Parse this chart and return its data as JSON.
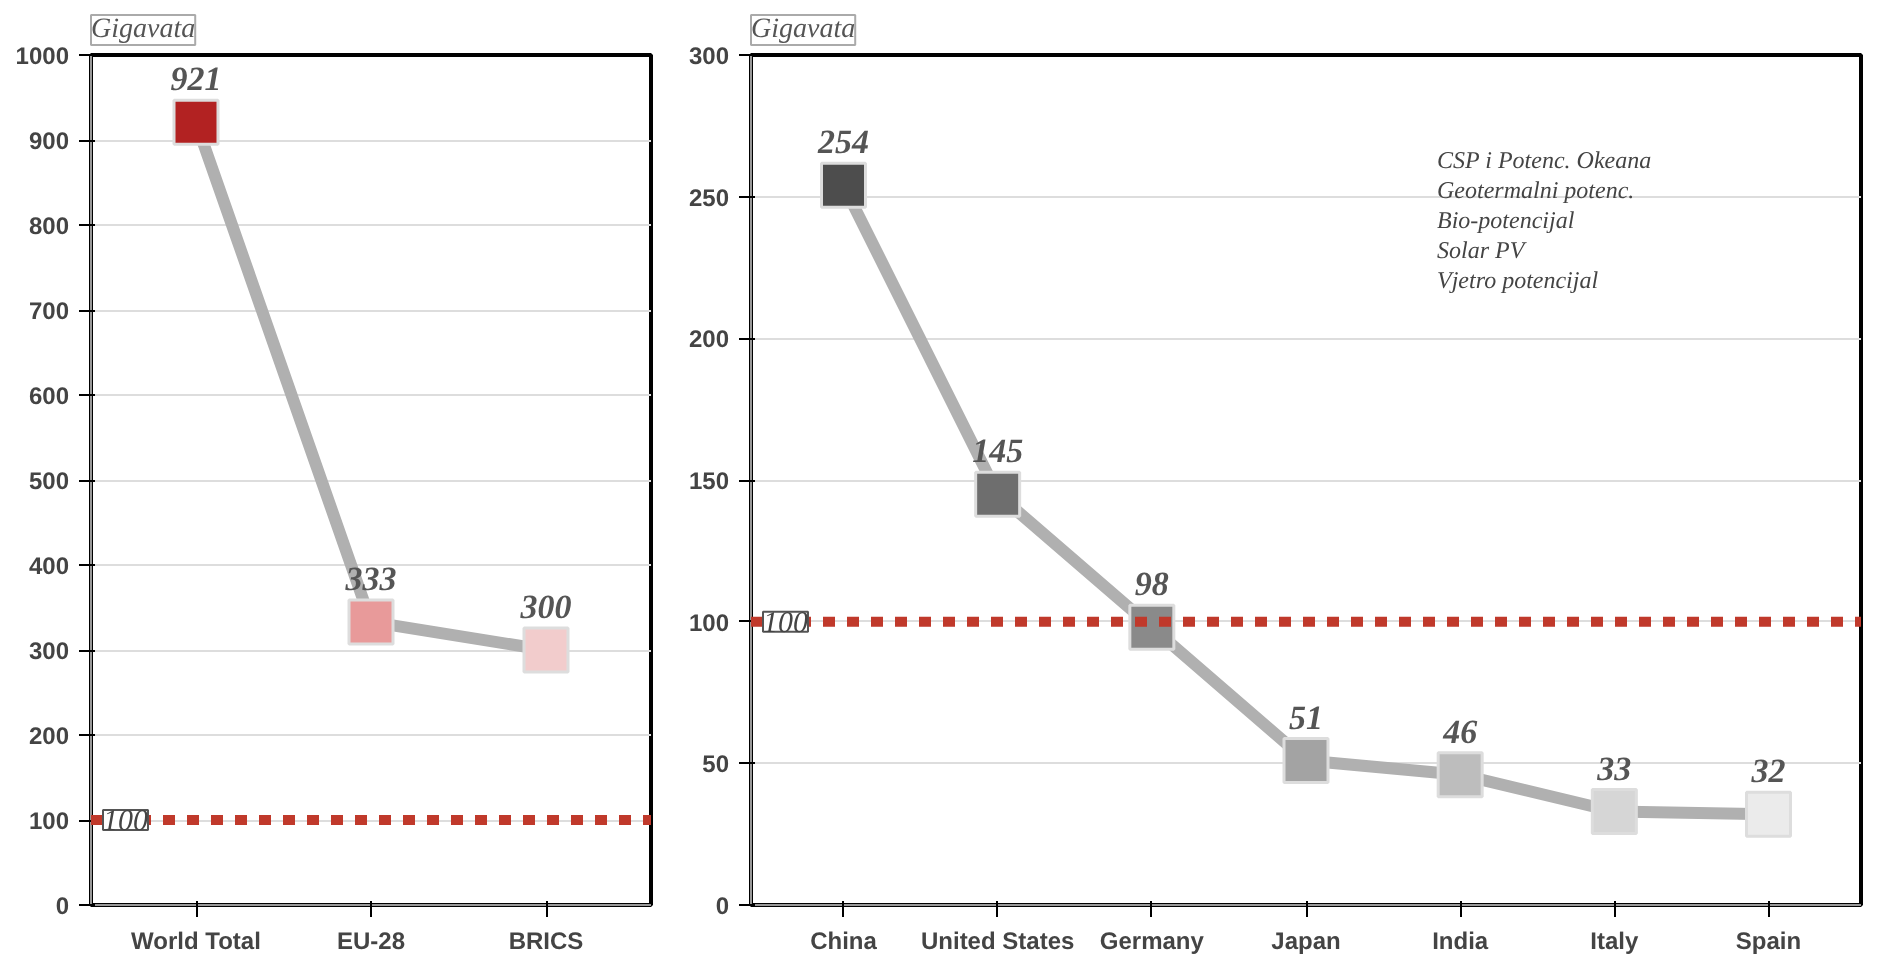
{
  "chart_data": [
    {
      "type": "line",
      "ylabel": "Gigavata",
      "categories": [
        "World Total",
        "EU-28",
        "BRICS"
      ],
      "series": [
        {
          "color": "#b0b0b0",
          "colors": [
            "#b22222",
            "#e89a9a",
            "#f2cccc"
          ],
          "values": [
            921,
            333,
            300
          ]
        }
      ],
      "ylim": [
        0,
        1000
      ],
      "yticks": [
        0,
        100,
        200,
        300,
        400,
        500,
        600,
        700,
        800,
        900,
        1000
      ],
      "grid": "y",
      "marker": "square",
      "data_labels": true,
      "ref_lines": [
        {
          "axis": "y",
          "value": 100,
          "label": "100",
          "color": "#c0392b",
          "line_style": "dashed"
        }
      ]
    },
    {
      "type": "line",
      "ylabel": "Gigavata",
      "categories": [
        "China",
        "United States",
        "Germany",
        "Japan",
        "India",
        "Italy",
        "Spain"
      ],
      "series": [
        {
          "color": "#b0b0b0",
          "colors": [
            "#4d4d4d",
            "#6e6e6e",
            "#8a8a8a",
            "#a3a3a3",
            "#bdbdbd",
            "#d6d6d6",
            "#ebebeb"
          ],
          "values": [
            254,
            145,
            98,
            51,
            46,
            33,
            32
          ]
        }
      ],
      "ylim": [
        0,
        300
      ],
      "yticks": [
        0,
        50,
        100,
        150,
        200,
        250,
        300
      ],
      "grid": "y",
      "marker": "square",
      "data_labels": true,
      "ref_lines": [
        {
          "axis": "y",
          "value": 100,
          "label": "100",
          "color": "#c0392b",
          "line_style": "dashed"
        }
      ],
      "annotations": [
        "CSP i Potenc. Okeana",
        "Geotermalni potenc.",
        "Bio-potencijal",
        "Solar PV",
        "Vjetro potencijal"
      ]
    }
  ]
}
